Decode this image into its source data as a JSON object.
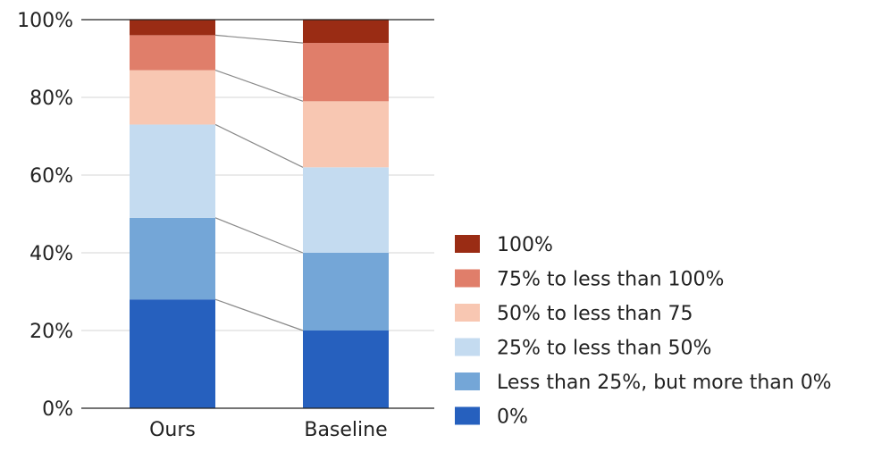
{
  "chart_data": {
    "type": "bar",
    "stacked": true,
    "categories": [
      "Ours",
      "Baseline"
    ],
    "y_ticks": [
      "0%",
      "20%",
      "40%",
      "60%",
      "80%",
      "100%"
    ],
    "ylim": [
      0,
      100
    ],
    "grid": true,
    "legend_position": "right",
    "series": [
      {
        "name": "0%",
        "color": "#2660be",
        "values": [
          28,
          20
        ]
      },
      {
        "name": "Less than 25%, but more than 0%",
        "color": "#74a6d7",
        "values": [
          21,
          20
        ]
      },
      {
        "name": "25% to less than 50%",
        "color": "#c4dbf0",
        "values": [
          24,
          22
        ]
      },
      {
        "name": "50% to less than 75",
        "color": "#f8c7b2",
        "values": [
          14,
          17
        ]
      },
      {
        "name": "75% to less than 100%",
        "color": "#e07e6a",
        "values": [
          9,
          15
        ]
      },
      {
        "name": "100%",
        "color": "#9a2c14",
        "values": [
          4,
          6
        ]
      }
    ]
  }
}
